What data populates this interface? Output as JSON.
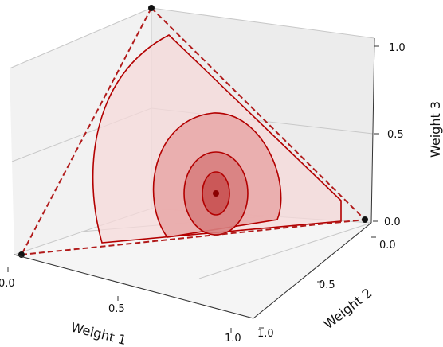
{
  "chart_data": {
    "type": "3d-simplex-contour",
    "xlabel": "Weight 1",
    "ylabel": "Weight 2",
    "zlabel": "Weight 3",
    "x_ticks": [
      "0.0",
      "0.5",
      "1.0"
    ],
    "y_ticks": [
      "0.0",
      "0.5",
      "1.0"
    ],
    "z_ticks": [
      "0.0",
      "0.5",
      "1.0"
    ],
    "xlim": [
      0,
      1
    ],
    "ylim": [
      0,
      1
    ],
    "zlim": [
      0,
      1
    ],
    "grid": true,
    "simplex_vertices": [
      {
        "w1": 1,
        "w2": 0,
        "w3": 0
      },
      {
        "w1": 0,
        "w2": 1,
        "w3": 0
      },
      {
        "w1": 0,
        "w2": 0,
        "w3": 1
      }
    ],
    "center_point": {
      "w1": 0.333,
      "w2": 0.333,
      "w3": 0.333
    },
    "contour_levels": 4,
    "colors": {
      "edge": "#b11a1a",
      "contour_line": "#b30000",
      "fills": [
        "#f6dada",
        "#e9aaaa",
        "#d88080",
        "#c95353"
      ],
      "center": "#8b0000",
      "vertex": "#111111",
      "pane_line": "#c8c8c8"
    }
  }
}
